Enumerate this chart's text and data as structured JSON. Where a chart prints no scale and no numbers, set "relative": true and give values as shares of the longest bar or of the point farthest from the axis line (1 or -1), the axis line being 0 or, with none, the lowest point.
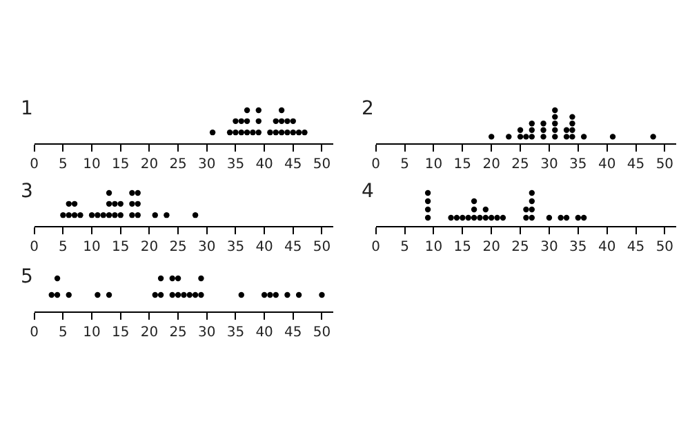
{
  "chart_data": [
    {
      "type": "scatter",
      "title": "1",
      "color": "#000000",
      "marker": "circle",
      "tick_labels": "x",
      "relative": true,
      "xlim": [
        0,
        52
      ],
      "xticks": [
        0,
        5,
        10,
        15,
        20,
        25,
        30,
        35,
        40,
        45,
        50
      ],
      "x": [
        31,
        34,
        35,
        35,
        36,
        36,
        37,
        37,
        37,
        38,
        39,
        39,
        39,
        41,
        42,
        42,
        43,
        43,
        43,
        44,
        44,
        45,
        45,
        46,
        47
      ],
      "values": [
        0.33,
        0.33,
        0.33,
        0.67,
        0.33,
        0.67,
        0.33,
        0.67,
        1,
        0.33,
        0.33,
        0.67,
        1,
        0.33,
        0.33,
        0.67,
        0.33,
        0.67,
        1,
        0.33,
        0.67,
        0.33,
        0.67,
        0.33,
        0.33
      ]
    },
    {
      "type": "scatter",
      "title": "2",
      "color": "#000000",
      "marker": "circle",
      "tick_labels": "x",
      "relative": true,
      "xlim": [
        0,
        52
      ],
      "xticks": [
        0,
        5,
        10,
        15,
        20,
        25,
        30,
        35,
        40,
        45,
        50
      ],
      "x": [
        20,
        23,
        25,
        25,
        26,
        27,
        27,
        27,
        29,
        29,
        29,
        31,
        31,
        31,
        31,
        31,
        33,
        33,
        34,
        34,
        34,
        34,
        36,
        41,
        48
      ],
      "values": [
        0.2,
        0.2,
        0.2,
        0.4,
        0.2,
        0.2,
        0.4,
        0.6,
        0.2,
        0.4,
        0.6,
        0.2,
        0.4,
        0.6,
        0.8,
        1,
        0.2,
        0.4,
        0.2,
        0.4,
        0.6,
        0.8,
        0.2,
        0.2,
        0.2
      ]
    },
    {
      "type": "scatter",
      "title": "3",
      "color": "#000000",
      "marker": "circle",
      "tick_labels": "x",
      "relative": true,
      "xlim": [
        0,
        52
      ],
      "xticks": [
        0,
        5,
        10,
        15,
        20,
        25,
        30,
        35,
        40,
        45,
        50
      ],
      "x": [
        5,
        6,
        6,
        7,
        7,
        8,
        10,
        11,
        12,
        13,
        13,
        13,
        14,
        14,
        15,
        15,
        17,
        17,
        17,
        18,
        18,
        18,
        21,
        23,
        28
      ],
      "values": [
        0.33,
        0.33,
        0.67,
        0.33,
        0.67,
        0.33,
        0.33,
        0.33,
        0.33,
        0.33,
        0.67,
        1,
        0.33,
        0.67,
        0.33,
        0.67,
        0.33,
        0.67,
        1,
        0.33,
        0.67,
        1,
        0.33,
        0.33,
        0.33
      ]
    },
    {
      "type": "scatter",
      "title": "4",
      "color": "#000000",
      "marker": "circle",
      "tick_labels": "x",
      "relative": true,
      "xlim": [
        0,
        52
      ],
      "xticks": [
        0,
        5,
        10,
        15,
        20,
        25,
        30,
        35,
        40,
        45,
        50
      ],
      "x": [
        9,
        9,
        9,
        9,
        13,
        14,
        15,
        16,
        17,
        17,
        17,
        18,
        19,
        19,
        20,
        21,
        22,
        26,
        26,
        27,
        27,
        27,
        27,
        30,
        32,
        33,
        35,
        36
      ],
      "values": [
        0.25,
        0.5,
        0.75,
        1,
        0.25,
        0.25,
        0.25,
        0.25,
        0.25,
        0.5,
        0.75,
        0.25,
        0.25,
        0.5,
        0.25,
        0.25,
        0.25,
        0.25,
        0.5,
        0.25,
        0.5,
        0.75,
        1,
        0.25,
        0.25,
        0.25,
        0.25,
        0.25
      ]
    },
    {
      "type": "scatter",
      "title": "5",
      "color": "#000000",
      "marker": "circle",
      "tick_labels": "x",
      "relative": true,
      "xlim": [
        0,
        52
      ],
      "xticks": [
        0,
        5,
        10,
        15,
        20,
        25,
        30,
        35,
        40,
        45,
        50
      ],
      "x": [
        3,
        4,
        4,
        6,
        11,
        13,
        21,
        22,
        22,
        24,
        24,
        25,
        25,
        26,
        27,
        28,
        29,
        29,
        36,
        40,
        41,
        42,
        44,
        46,
        50
      ],
      "values": [
        0.5,
        0.5,
        1,
        0.5,
        0.5,
        0.5,
        0.5,
        0.5,
        1,
        0.5,
        1,
        0.5,
        1,
        0.5,
        0.5,
        0.5,
        0.5,
        1,
        0.5,
        0.5,
        0.5,
        0.5,
        0.5,
        0.5,
        0.5
      ]
    }
  ]
}
